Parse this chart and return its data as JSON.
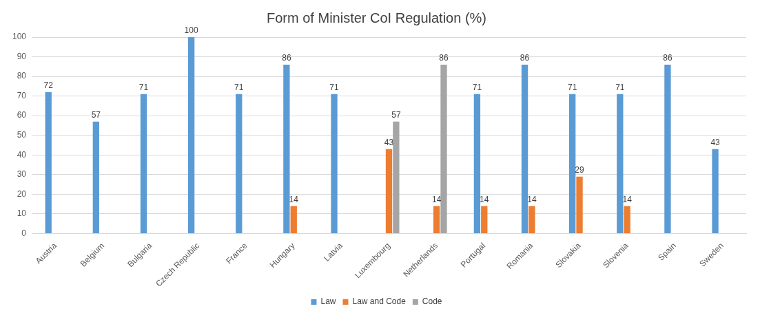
{
  "chart_data": {
    "type": "bar",
    "title": "Form of Minister CoI Regulation (%)",
    "categories": [
      "Austria",
      "Belgium",
      "Bulgaria",
      "Czech Republic",
      "France",
      "Hungary",
      "Latvia",
      "Luxembourg",
      "Netherlands",
      "Portugal",
      "Romania",
      "Slovakia",
      "Slovenia",
      "Spain",
      "Sweden"
    ],
    "series": [
      {
        "name": "Law",
        "color": "#5b9bd5",
        "values": [
          72,
          57,
          71,
          100,
          71,
          86,
          71,
          null,
          null,
          71,
          86,
          71,
          71,
          86,
          43
        ]
      },
      {
        "name": "Law and Code",
        "color": "#ed7d31",
        "values": [
          null,
          null,
          null,
          null,
          null,
          14,
          null,
          43,
          14,
          14,
          14,
          29,
          14,
          null,
          null
        ]
      },
      {
        "name": "Code",
        "color": "#a5a5a5",
        "values": [
          null,
          null,
          null,
          null,
          null,
          null,
          null,
          57,
          86,
          null,
          null,
          null,
          null,
          null,
          null
        ]
      }
    ],
    "ylim": [
      0,
      100
    ],
    "yticks": [
      0,
      10,
      20,
      30,
      40,
      50,
      60,
      70,
      80,
      90,
      100
    ],
    "grid": "y",
    "legend": "bottom",
    "data_labels": true
  }
}
